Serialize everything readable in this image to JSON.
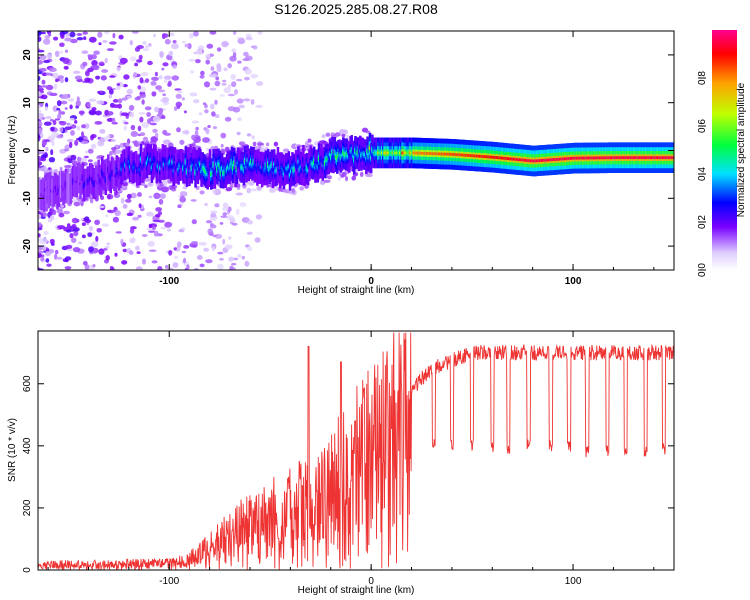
{
  "chart_data": [
    {
      "type": "heatmap",
      "title": "S126.2025.285.08.27.R08",
      "xlabel": "Height of straight line (km)",
      "ylabel": "Frequency (Hz)",
      "xlim": [
        -165,
        150
      ],
      "ylim": [
        -25,
        25
      ],
      "xticks": [
        -100,
        0,
        100
      ],
      "yticks": [
        -20,
        -10,
        0,
        10,
        20
      ],
      "colorbar": {
        "label": "Normalized spectral amplitude",
        "range": [
          0,
          1
        ],
        "ticks": [
          "0.0",
          "0.2",
          "0.4",
          "0.6",
          "0.8"
        ],
        "tick_values": [
          0,
          0.2,
          0.4,
          0.6,
          0.8
        ]
      },
      "ridge": {
        "x": [
          -165,
          -130,
          -120,
          -100,
          -80,
          -60,
          -40,
          -25,
          -15,
          0,
          20,
          40,
          60,
          80,
          100,
          120,
          150
        ],
        "freq": [
          -9,
          -5,
          -3,
          -3,
          -4,
          -3,
          -4,
          -2,
          -1,
          -0.5,
          -0.5,
          -0.8,
          -1.4,
          -2.2,
          -1.6,
          -1.5,
          -1.5
        ],
        "peak_amplitude": [
          0.15,
          0.25,
          0.35,
          0.35,
          0.45,
          0.45,
          0.4,
          0.45,
          0.5,
          0.6,
          0.8,
          0.85,
          0.9,
          0.95,
          0.95,
          0.95,
          0.95
        ]
      }
    },
    {
      "type": "line",
      "xlabel": "Height of straight line (km)",
      "ylabel": "SNR (10 * v/v)",
      "xlim": [
        -165,
        150
      ],
      "ylim": [
        0,
        770
      ],
      "xticks": [
        -100,
        0,
        100
      ],
      "yticks": [
        0,
        200,
        400,
        600
      ],
      "color": "#ee3333",
      "series": [
        {
          "name": "SNR",
          "envelope_x": [
            -165,
            -100,
            -90,
            -80,
            -70,
            -60,
            -50,
            -40,
            -30,
            -20,
            -10,
            0,
            10,
            20,
            30,
            50,
            80,
            100,
            150
          ],
          "envelope_y": [
            20,
            25,
            40,
            80,
            130,
            170,
            200,
            230,
            260,
            300,
            380,
            440,
            520,
            580,
            650,
            700,
            700,
            700,
            700
          ],
          "spikes": [
            {
              "x": -31,
              "y": 720
            },
            {
              "x": -15,
              "y": 670
            },
            {
              "x": -8,
              "y": 480
            }
          ],
          "dropouts": [
            {
              "x": 31,
              "y": 400
            },
            {
              "x": 40,
              "y": 400
            },
            {
              "x": 50,
              "y": 400
            },
            {
              "x": 60,
              "y": 400
            },
            {
              "x": 68,
              "y": 390
            },
            {
              "x": 78,
              "y": 400
            },
            {
              "x": 89,
              "y": 400
            },
            {
              "x": 98,
              "y": 400
            },
            {
              "x": 107,
              "y": 380
            },
            {
              "x": 117,
              "y": 380
            },
            {
              "x": 126,
              "y": 390
            },
            {
              "x": 136,
              "y": 380
            },
            {
              "x": 145,
              "y": 390
            }
          ]
        }
      ]
    }
  ]
}
